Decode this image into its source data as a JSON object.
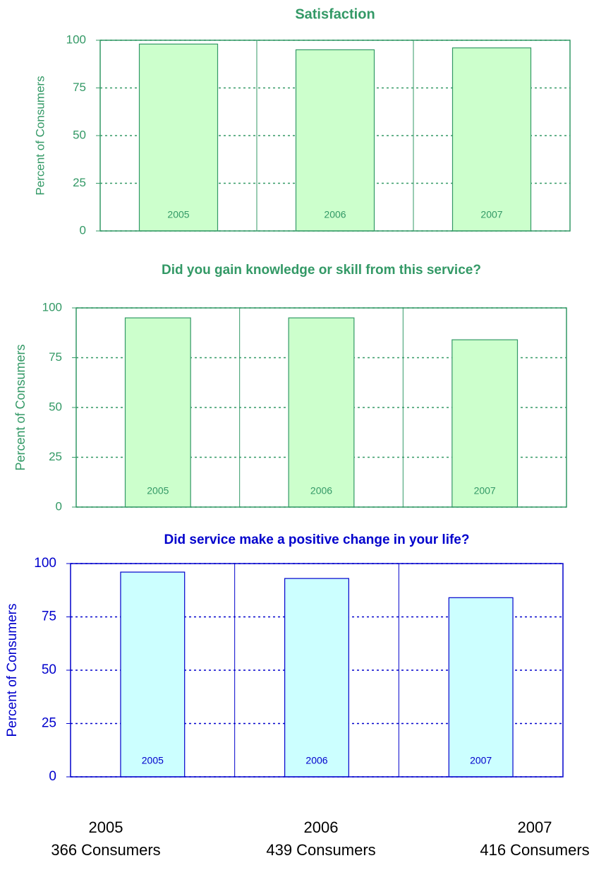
{
  "chart_data": [
    {
      "type": "bar",
      "title": "Satisfaction",
      "ylabel": "Percent of Consumers",
      "categories": [
        "2005",
        "2006",
        "2007"
      ],
      "values": [
        98,
        95,
        96
      ],
      "color": "#ccffcc",
      "edgecolor": "#339966",
      "text_color": "#339966",
      "ylim": [
        0,
        100
      ],
      "yticks": [
        0,
        25,
        50,
        75,
        100
      ],
      "grid": true
    },
    {
      "type": "bar",
      "title": "Did you gain knowledge or skill from this service?",
      "ylabel": "Percent of Consumers",
      "categories": [
        "2005",
        "2006",
        "2007"
      ],
      "values": [
        95,
        95,
        84
      ],
      "color": "#ccffcc",
      "edgecolor": "#339966",
      "text_color": "#339966",
      "ylim": [
        0,
        100
      ],
      "yticks": [
        0,
        25,
        50,
        75,
        100
      ],
      "grid": true
    },
    {
      "type": "bar",
      "title": "Did service make a positive change in your life?",
      "ylabel": "Percent of Consumers",
      "categories": [
        "2005",
        "2006",
        "2007"
      ],
      "values": [
        96,
        93,
        84
      ],
      "color": "#ccffff",
      "edgecolor": "#0000cc",
      "text_color": "#0000cc",
      "ylim": [
        0,
        100
      ],
      "yticks": [
        0,
        25,
        50,
        75,
        100
      ],
      "grid": true
    }
  ],
  "footer": [
    {
      "year": "2005",
      "count": "366 Consumers"
    },
    {
      "year": "2006",
      "count": "439 Consumers"
    },
    {
      "year": "2007",
      "count": "416 Consumers"
    }
  ]
}
